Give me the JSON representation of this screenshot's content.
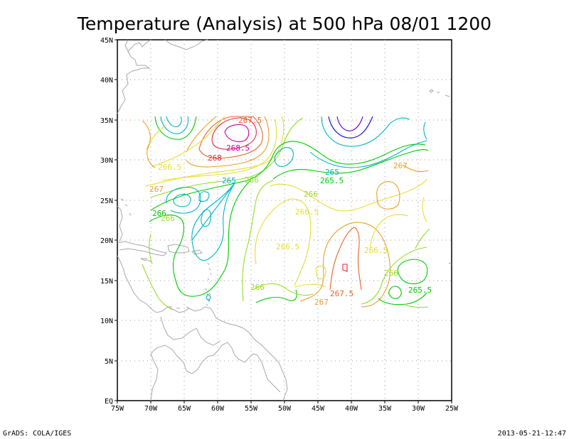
{
  "title": "Temperature (Analysis) at 500 hPa 08/01 1200",
  "footer_left": "GrADS: COLA/IGES",
  "footer_right": "2013-05-21-12:47",
  "lon_ticks": [
    "75W",
    "70W",
    "65W",
    "60W",
    "55W",
    "50W",
    "45W",
    "40W",
    "35W",
    "30W",
    "25W"
  ],
  "lat_ticks": [
    "45N",
    "40N",
    "35N",
    "30N",
    "25N",
    "20N",
    "15N",
    "10N",
    "5N",
    "EQ"
  ],
  "colors": {
    "coastline": "#a8a8a8",
    "c264_5": "#0000c8",
    "c264_75": "#5a00c8",
    "c265_0": "#00b4c8",
    "c265_5": "#00c800",
    "c266_0": "#96dc28",
    "c266_5": "#e6dc32",
    "c267_0": "#e6a028",
    "c267_5": "#e66428",
    "c268_0": "#e6283c",
    "c268_5": "#c800a0"
  },
  "contour_labels": [
    {
      "text": "267.5",
      "color": "#e66428"
    },
    {
      "text": "268.5",
      "color": "#c800a0"
    },
    {
      "text": "268",
      "color": "#e6283c"
    },
    {
      "text": "266.5",
      "color": "#e6dc32"
    },
    {
      "text": "267",
      "color": "#e6a028"
    },
    {
      "text": "265",
      "color": "#00b4c8"
    },
    {
      "text": "266",
      "color": "#96dc28"
    },
    {
      "text": "265",
      "color": "#00b4c8"
    },
    {
      "text": "265.5",
      "color": "#00c800"
    },
    {
      "text": "266",
      "color": "#96dc28"
    },
    {
      "text": "266.5",
      "color": "#e6dc32"
    },
    {
      "text": "267",
      "color": "#e6a028"
    },
    {
      "text": "266",
      "color": "#96dc28"
    },
    {
      "text": "266",
      "color": "#96dc28"
    },
    {
      "text": "266.5",
      "color": "#e6dc32"
    },
    {
      "text": "266.5",
      "color": "#e6dc32"
    },
    {
      "text": "266",
      "color": "#96dc28"
    },
    {
      "text": "267.5",
      "color": "#e66428"
    },
    {
      "text": "267",
      "color": "#e6a028"
    },
    {
      "text": "266",
      "color": "#96dc28"
    },
    {
      "text": "265.5",
      "color": "#00c800"
    }
  ]
}
